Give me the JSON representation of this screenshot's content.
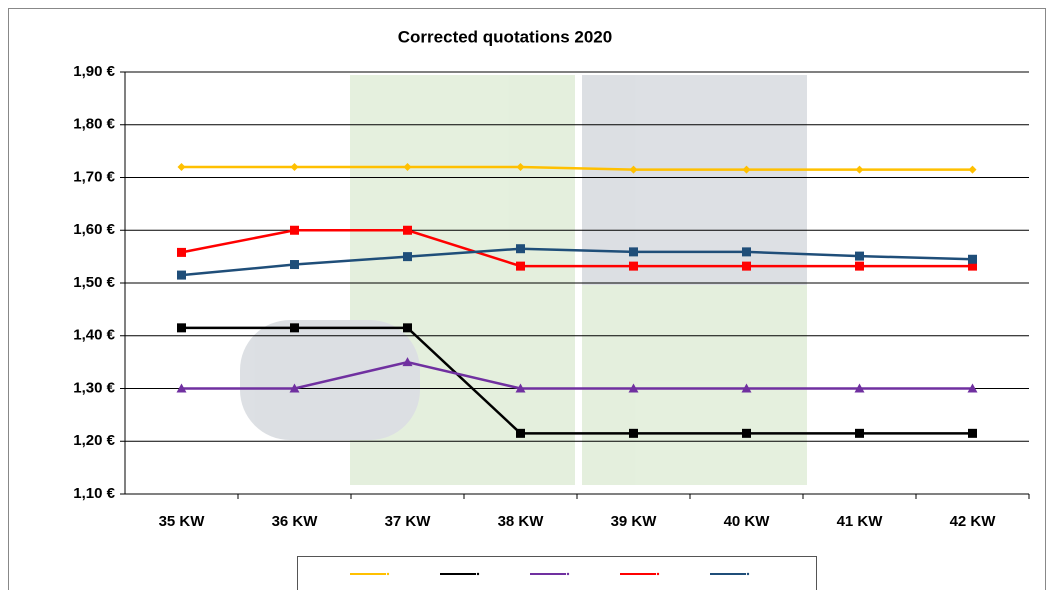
{
  "chart_data": {
    "type": "line",
    "title": "Corrected quotations 2020",
    "categories": [
      "35 KW",
      "36 KW",
      "37 KW",
      "38 KW",
      "39 KW",
      "40 KW",
      "41 KW",
      "42 KW"
    ],
    "series": [
      {
        "color": "#ffc000",
        "marker": "diamond",
        "values": [
          1.72,
          1.72,
          1.72,
          1.72,
          1.715,
          1.715,
          1.715,
          1.715
        ]
      },
      {
        "color": "#000000",
        "marker": "square",
        "values": [
          1.415,
          1.415,
          1.415,
          1.215,
          1.215,
          1.215,
          1.215,
          1.215
        ]
      },
      {
        "color": "#7030a0",
        "marker": "triangle",
        "values": [
          1.3,
          1.3,
          1.35,
          1.3,
          1.3,
          1.3,
          1.3,
          1.3
        ]
      },
      {
        "color": "#ff0000",
        "marker": "square",
        "values": [
          1.558,
          1.6,
          1.6,
          1.532,
          1.532,
          1.532,
          1.532,
          1.532
        ]
      },
      {
        "color": "#1f4e79",
        "marker": "square",
        "values": [
          1.515,
          1.535,
          1.55,
          1.565,
          1.559,
          1.559,
          1.551,
          1.545
        ]
      }
    ],
    "ylim": [
      1.1,
      1.9
    ],
    "yticks": [
      {
        "value": 1.1,
        "label": "1,10 €"
      },
      {
        "value": 1.2,
        "label": "1,20 €"
      },
      {
        "value": 1.3,
        "label": "1,30 €"
      },
      {
        "value": 1.4,
        "label": "1,40 €"
      },
      {
        "value": 1.5,
        "label": "1,50 €"
      },
      {
        "value": 1.6,
        "label": "1,60 €"
      },
      {
        "value": 1.7,
        "label": "1,70 €"
      },
      {
        "value": 1.8,
        "label": "1,80 €"
      },
      {
        "value": 1.9,
        "label": "1,90 €"
      }
    ],
    "grid": true
  }
}
